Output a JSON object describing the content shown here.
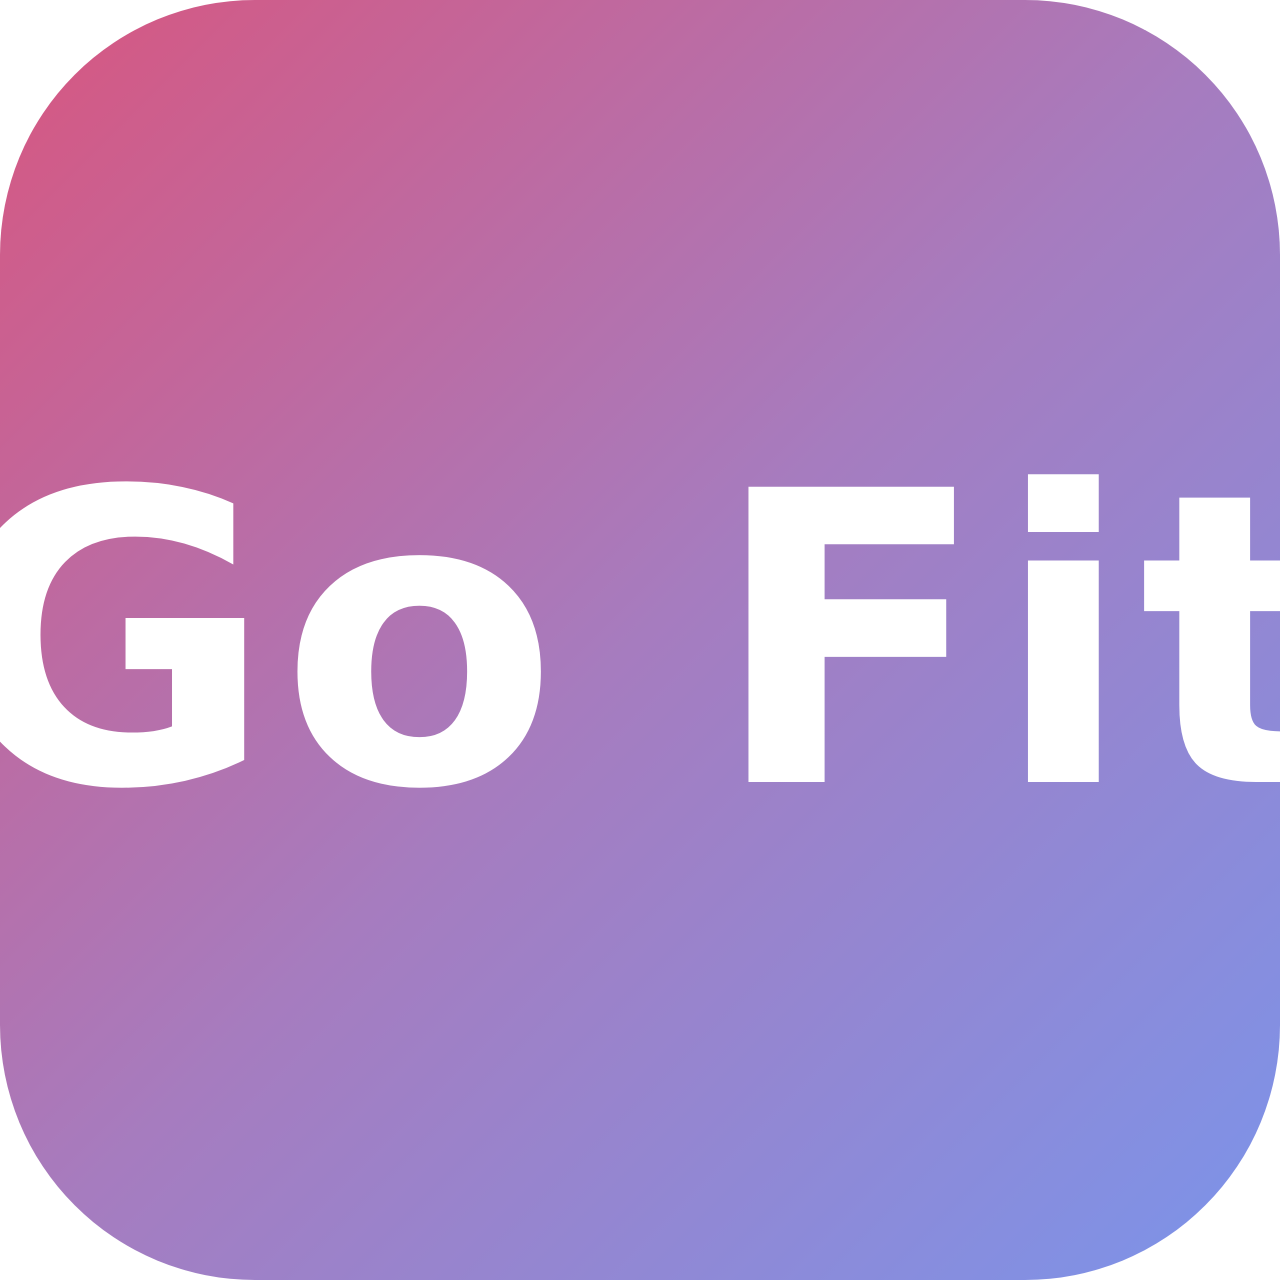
{
  "app_icon": {
    "logo_text": "Go Fit",
    "colors": {
      "gradient_start": "#d8567f",
      "gradient_mid": "#a67cbf",
      "gradient_end": "#7b94ea",
      "text": "#ffffff"
    }
  }
}
